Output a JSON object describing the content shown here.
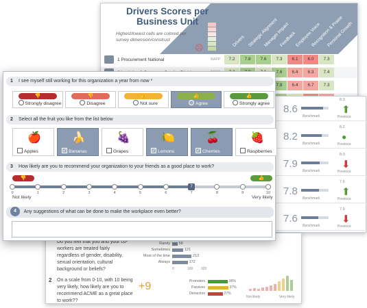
{
  "heatmap": {
    "title": "Drivers Scores per Business Unit",
    "note": "Highest/lowest cells are colored per survey dimension/construct",
    "columns": [
      "Drivers",
      "Strategic Alignment",
      "Manager Impact",
      "Feedback",
      "Employee Voice",
      "Recognition & Praise",
      "Personal Growth"
    ],
    "rows": [
      {
        "label": "1 Procurement National",
        "small": "MAPP",
        "values": [
          "7.2",
          "7.8",
          "7.6",
          "7.3",
          "6.1",
          "6.0",
          "7.3"
        ]
      },
      {
        "label": "2 Logistics & Customer Service Division",
        "small": "REDO",
        "values": [
          "7.2",
          "7.8",
          "7.1",
          "7.6",
          "6.4",
          "6.3",
          "7.4"
        ]
      },
      {
        "label": "",
        "small": "",
        "values": [
          "",
          "",
          "",
          "7.8",
          "6.4",
          "6.7",
          "7.3"
        ]
      },
      {
        "label": "",
        "small": "",
        "values": [
          "",
          "",
          "",
          "7.7",
          "7.1",
          "5.6",
          "6.9"
        ]
      }
    ],
    "colors": {
      "high": "#a9d18e",
      "mid": "#d9e6c3",
      "low": "#f4a6a0",
      "lowest": "#f08a84",
      "neutral": "#ffffff"
    }
  },
  "scores": [
    {
      "value": "8.6",
      "bar": 0.8,
      "benchmark": "Benchmark",
      "prev": "8.3",
      "trend": "up"
    },
    {
      "value": "8.2",
      "bar": 0.75,
      "benchmark": "Benchmark",
      "prev": "8.2",
      "trend": "same"
    },
    {
      "value": "7.9",
      "bar": 0.68,
      "benchmark": "Benchmark",
      "prev": "8.0",
      "trend": "down"
    },
    {
      "value": "7.8",
      "bar": 0.66,
      "benchmark": "Benchmark",
      "prev": "7.6",
      "trend": "up"
    },
    {
      "value": "7.6",
      "bar": 0.62,
      "benchmark": "Benchmark",
      "prev": "7.9",
      "trend": "down"
    }
  ],
  "scores_prev_label": "Previous",
  "survey": {
    "q1": {
      "num": "1",
      "text": "I see myself still working for this organization a year from now *",
      "options": [
        {
          "label": "Strongly disagree",
          "color": "#b72d2d",
          "selected": false
        },
        {
          "label": "Disagree",
          "color": "#e06a5c",
          "selected": false
        },
        {
          "label": "Not sure",
          "color": "#f2b233",
          "selected": false
        },
        {
          "label": "Agree",
          "color": "#8bb04a",
          "selected": true
        },
        {
          "label": "Strongly agree",
          "color": "#5a9a3c",
          "selected": false
        }
      ]
    },
    "q2": {
      "num": "2",
      "text": "Select all the fruit you like from the list below",
      "options": [
        {
          "label": "Apples",
          "icon": "apple-icon",
          "glyph": "🍎",
          "selected": false
        },
        {
          "label": "Bananas",
          "icon": "banana-icon",
          "glyph": "🍌",
          "selected": true
        },
        {
          "label": "Grapes",
          "icon": "grapes-icon",
          "glyph": "🍇",
          "selected": false
        },
        {
          "label": "Lemons",
          "icon": "lemon-icon",
          "glyph": "🍋",
          "selected": true
        },
        {
          "label": "Cherries",
          "icon": "cherries-icon",
          "glyph": "🍒",
          "selected": true
        },
        {
          "label": "Raspberries",
          "icon": "raspberry-icon",
          "glyph": "🍓",
          "selected": false
        }
      ]
    },
    "q3": {
      "num": "3",
      "text": "How likely are you to recommend your organization to your friends as a good place to work?",
      "ticks": [
        "0",
        "1",
        "2",
        "3",
        "4",
        "5",
        "6",
        "7",
        "8",
        "9",
        "10"
      ],
      "selected": "7",
      "low_label": "Not likely",
      "high_label": "Very likely"
    },
    "q4": {
      "num": "4",
      "text": "Any suggestions of what can be done to make the workplace even better?",
      "value": ""
    }
  },
  "report": {
    "q1_text": "Do you feel that you and your co-workers are treated fairly regardless of gender, disability, sexual orientation, cultural background or beliefs?",
    "q1_options": [
      {
        "label": "Rarely",
        "count": "58"
      },
      {
        "label": "Sometimes",
        "count": "121"
      },
      {
        "label": "Most of the time",
        "count": "213"
      },
      {
        "label": "Always",
        "count": "172"
      }
    ],
    "q1_axis": [
      "0",
      "160",
      "320"
    ],
    "q2_num": "2",
    "q2_text": "On a scale from 0-10, with 10 being very likely, how likely are you to recommend ACME as a great place to work??",
    "nps": "+9",
    "categories": [
      {
        "label": "Promoters",
        "pct": "36%",
        "color": "#4a9a3c",
        "share": 0.36
      },
      {
        "label": "Passives",
        "pct": "37%",
        "color": "#e2b53a",
        "share": 0.37
      },
      {
        "label": "Detractors",
        "pct": "27%",
        "color": "#c9403a",
        "share": 0.27
      }
    ],
    "not_likely": "Not likely",
    "very_likely": "Very likely"
  }
}
